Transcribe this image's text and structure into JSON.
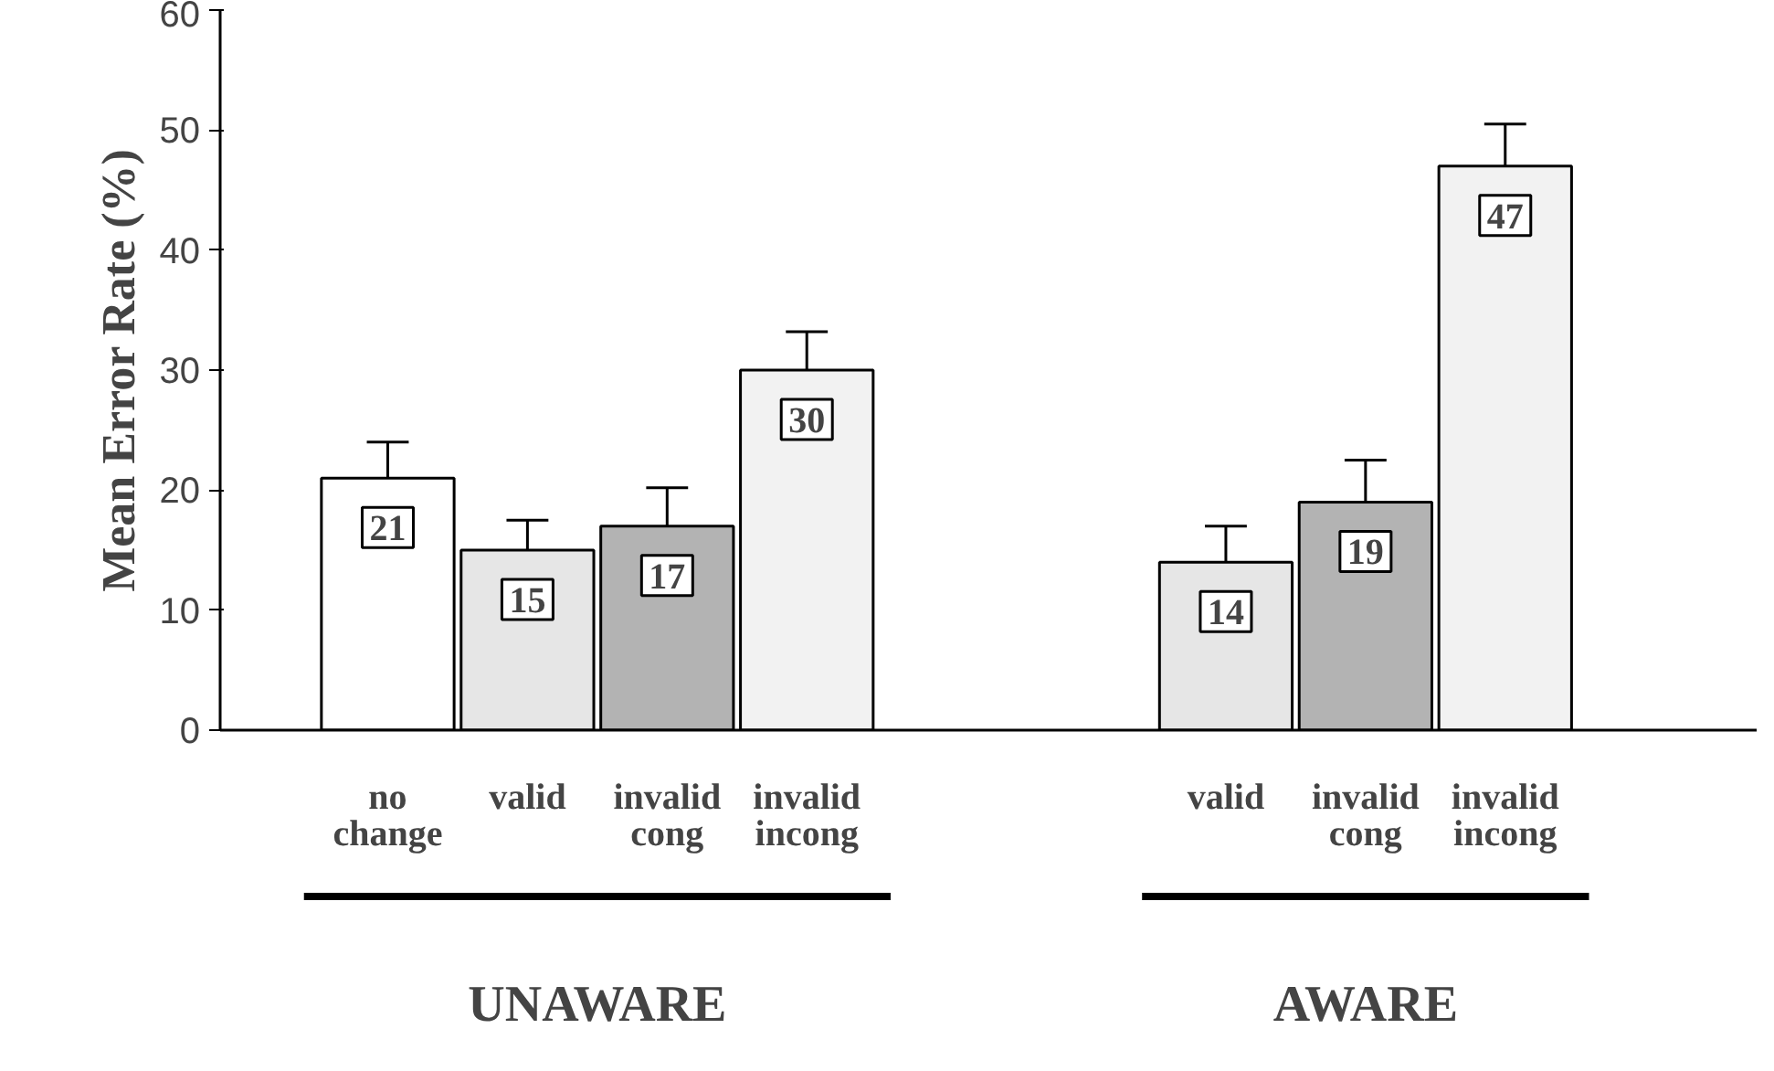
{
  "chart_data": {
    "type": "bar",
    "ylabel": "Mean Error Rate (%)",
    "categories": [
      "no\nchange",
      "valid",
      "invalid\ncong",
      "invalid\nincong",
      null,
      null,
      "valid",
      "invalid\ncong",
      "invalid\nincong"
    ],
    "values": [
      21,
      15,
      17,
      30,
      null,
      null,
      14,
      19,
      47
    ],
    "errors": [
      [
        21,
        24
      ],
      [
        15,
        17.5
      ],
      [
        17,
        20.2
      ],
      [
        30,
        33.2
      ],
      null,
      null,
      [
        14,
        17
      ],
      [
        19,
        22.5
      ],
      [
        47,
        50.5
      ]
    ],
    "colors": [
      "#ffffff",
      "#e6e6e6",
      "#b3b3b3",
      "#f2f2f2",
      null,
      null,
      "#e6e6e6",
      "#b3b3b3",
      "#f2f2f2"
    ],
    "ylim": [
      0,
      60
    ],
    "yticks": [
      0,
      10,
      20,
      30,
      40,
      50,
      60
    ],
    "grid": false,
    "data_labels": true,
    "annotations": [
      "UNAWARE",
      "AWARE"
    ]
  }
}
